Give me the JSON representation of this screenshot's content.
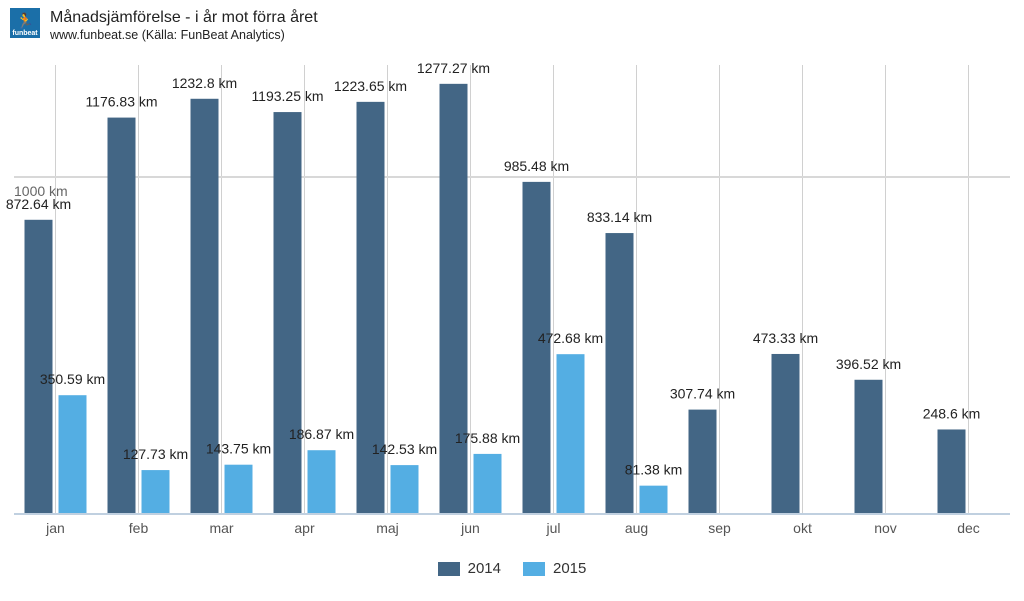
{
  "header": {
    "title": "Månadsjämförelse - i år mot förra året",
    "subtitle": "www.funbeat.se (Källa: FunBeat Analytics)",
    "logo_text": "funbeat"
  },
  "chart_data": {
    "type": "bar",
    "categories": [
      "jan",
      "feb",
      "mar",
      "apr",
      "maj",
      "jun",
      "jul",
      "aug",
      "sep",
      "okt",
      "nov",
      "dec"
    ],
    "series": [
      {
        "name": "2014",
        "color": "#436685",
        "values": [
          872.64,
          1176.83,
          1232.8,
          1193.25,
          1223.65,
          1277.27,
          985.48,
          833.14,
          307.74,
          473.33,
          396.52,
          248.6
        ]
      },
      {
        "name": "2015",
        "color": "#54aee3",
        "values": [
          350.59,
          127.73,
          143.75,
          186.87,
          142.53,
          175.88,
          472.68,
          81.38,
          null,
          null,
          null,
          null
        ]
      }
    ],
    "data_label_unit": "km",
    "y_ticks": [
      {
        "value": 1000,
        "label": "1000 km"
      }
    ],
    "ylim": [
      0,
      1300
    ],
    "grid": true,
    "legend": "bottom-center"
  }
}
